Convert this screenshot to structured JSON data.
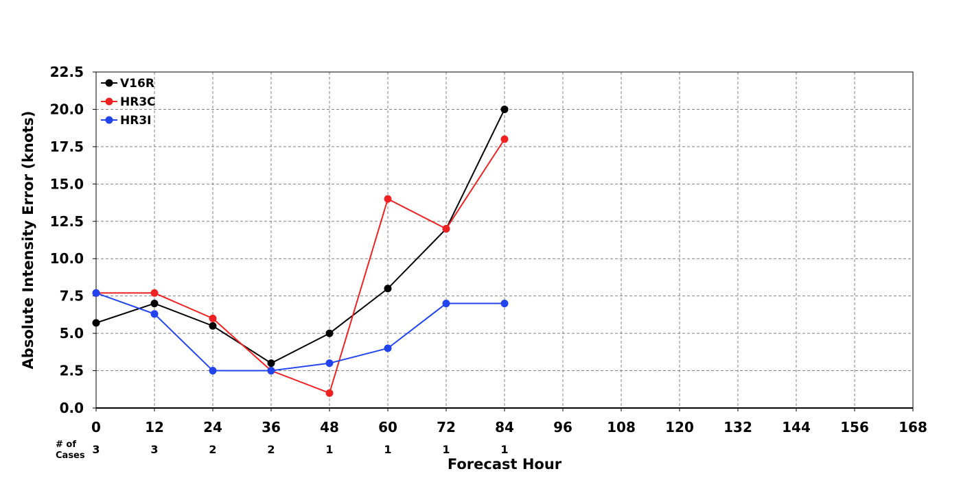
{
  "chart_data": {
    "type": "line",
    "xlabel": "Forecast Hour",
    "ylabel": "Absolute Intensity Error (knots)",
    "xlim": [
      0,
      168
    ],
    "ylim": [
      0,
      22.5
    ],
    "x_ticks": [
      0,
      12,
      24,
      36,
      48,
      60,
      72,
      84,
      96,
      108,
      120,
      132,
      144,
      156,
      168
    ],
    "y_ticks": [
      "0.0",
      "2.5",
      "5.0",
      "7.5",
      "10.0",
      "12.5",
      "15.0",
      "17.5",
      "20.0",
      "22.5"
    ],
    "grid": true,
    "legend_position": "top-left",
    "series": [
      {
        "name": "V16R",
        "color": "#000000",
        "x": [
          0,
          12,
          24,
          36,
          48,
          60,
          72,
          84
        ],
        "values": [
          5.7,
          7.0,
          5.5,
          3.0,
          5.0,
          8.0,
          12.0,
          20.0
        ]
      },
      {
        "name": "HR3C",
        "color": "#ee2222",
        "x": [
          0,
          12,
          24,
          36,
          48,
          60,
          72,
          84
        ],
        "values": [
          7.7,
          7.7,
          6.0,
          2.5,
          1.0,
          14.0,
          12.0,
          18.0
        ]
      },
      {
        "name": "HR3I",
        "color": "#2244ee",
        "x": [
          0,
          12,
          24,
          36,
          48,
          60,
          72,
          84
        ],
        "values": [
          7.7,
          6.3,
          2.5,
          2.5,
          3.0,
          4.0,
          7.0,
          7.0
        ]
      }
    ],
    "cases_label_line1": "# of",
    "cases_label_line2": "Cases",
    "cases": [
      {
        "x": 0,
        "n": "3"
      },
      {
        "x": 12,
        "n": "3"
      },
      {
        "x": 24,
        "n": "2"
      },
      {
        "x": 36,
        "n": "2"
      },
      {
        "x": 48,
        "n": "1"
      },
      {
        "x": 60,
        "n": "1"
      },
      {
        "x": 72,
        "n": "1"
      },
      {
        "x": 84,
        "n": "1"
      }
    ]
  }
}
